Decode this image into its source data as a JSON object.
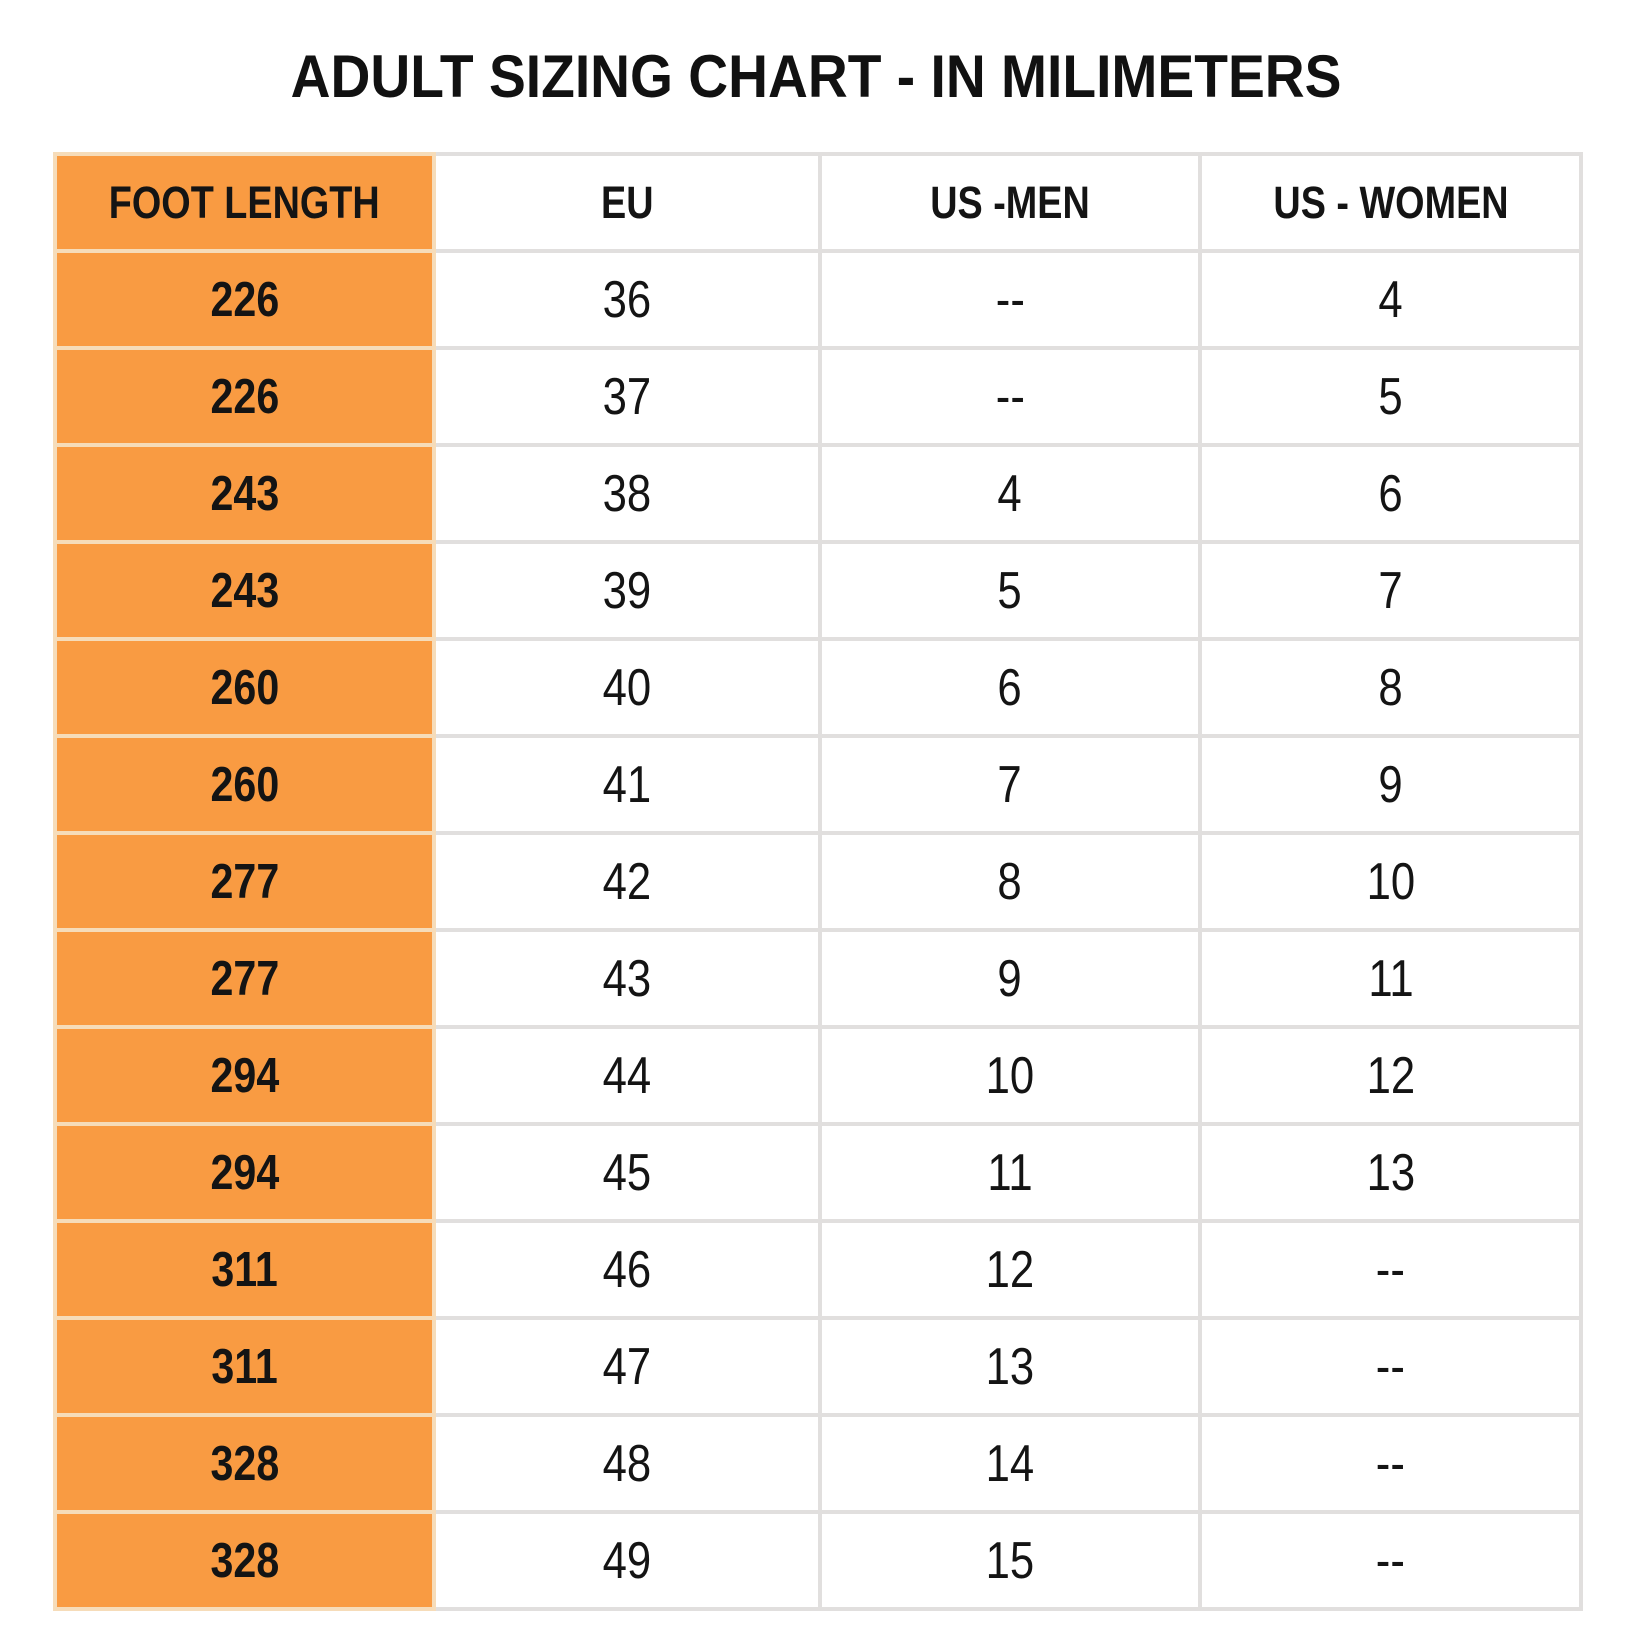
{
  "title": "ADULT SIZING CHART - IN MILIMETERS",
  "colors": {
    "header_column_orange": "#f99b42",
    "orange_divider": "#f6dcb9",
    "gridline_gray": "#e1dfde",
    "text": "#141414",
    "background": "#ffffff"
  },
  "table": {
    "columns": [
      "FOOT LENGTH",
      "EU",
      "US -MEN",
      "US - WOMEN"
    ],
    "rows": [
      [
        "226",
        "36",
        "--",
        "4"
      ],
      [
        "226",
        "37",
        "--",
        "5"
      ],
      [
        "243",
        "38",
        "4",
        "6"
      ],
      [
        "243",
        "39",
        "5",
        "7"
      ],
      [
        "260",
        "40",
        "6",
        "8"
      ],
      [
        "260",
        "41",
        "7",
        "9"
      ],
      [
        "277",
        "42",
        "8",
        "10"
      ],
      [
        "277",
        "43",
        "9",
        "11"
      ],
      [
        "294",
        "44",
        "10",
        "12"
      ],
      [
        "294",
        "45",
        "11",
        "13"
      ],
      [
        "311",
        "46",
        "12",
        "--"
      ],
      [
        "311",
        "47",
        "13",
        "--"
      ],
      [
        "328",
        "48",
        "14",
        "--"
      ],
      [
        "328",
        "49",
        "15",
        "--"
      ]
    ]
  },
  "chart_data": {
    "type": "table",
    "title": "ADULT SIZING CHART - IN MILIMETERS",
    "columns": [
      "FOOT LENGTH",
      "EU",
      "US -MEN",
      "US - WOMEN"
    ],
    "rows": [
      {
        "foot_length_mm": 226,
        "eu": 36,
        "us_men": null,
        "us_women": 4
      },
      {
        "foot_length_mm": 226,
        "eu": 37,
        "us_men": null,
        "us_women": 5
      },
      {
        "foot_length_mm": 243,
        "eu": 38,
        "us_men": 4,
        "us_women": 6
      },
      {
        "foot_length_mm": 243,
        "eu": 39,
        "us_men": 5,
        "us_women": 7
      },
      {
        "foot_length_mm": 260,
        "eu": 40,
        "us_men": 6,
        "us_women": 8
      },
      {
        "foot_length_mm": 260,
        "eu": 41,
        "us_men": 7,
        "us_women": 9
      },
      {
        "foot_length_mm": 277,
        "eu": 42,
        "us_men": 8,
        "us_women": 10
      },
      {
        "foot_length_mm": 277,
        "eu": 43,
        "us_men": 9,
        "us_women": 11
      },
      {
        "foot_length_mm": 294,
        "eu": 44,
        "us_men": 10,
        "us_women": 12
      },
      {
        "foot_length_mm": 294,
        "eu": 45,
        "us_men": 11,
        "us_women": 13
      },
      {
        "foot_length_mm": 311,
        "eu": 46,
        "us_men": 12,
        "us_women": null
      },
      {
        "foot_length_mm": 311,
        "eu": 47,
        "us_men": 13,
        "us_women": null
      },
      {
        "foot_length_mm": 328,
        "eu": 48,
        "us_men": 14,
        "us_women": null
      },
      {
        "foot_length_mm": 328,
        "eu": 49,
        "us_men": 15,
        "us_women": null
      }
    ],
    "missing_value_marker": "--",
    "layout": {
      "first_column_highlight_color": "#f99b42",
      "gridlines": true
    }
  }
}
